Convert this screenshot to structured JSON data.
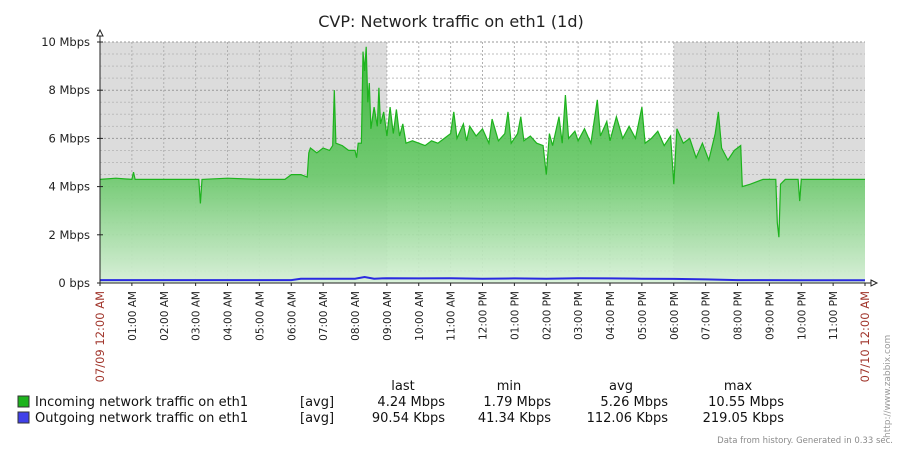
{
  "chart_data": {
    "type": "area",
    "title": "CVP: Network traffic on eth1 (1d)",
    "y_ticks": [
      "0 bps",
      "2 Mbps",
      "4 Mbps",
      "6 Mbps",
      "8 Mbps",
      "10 Mbps"
    ],
    "ylim_mbps": [
      0,
      10
    ],
    "x_start_label": "07/09 12:00 AM",
    "x_end_label": "07/10 12:00 AM",
    "x_ticks": [
      "01:00 AM",
      "02:00 AM",
      "03:00 AM",
      "04:00 AM",
      "05:00 AM",
      "06:00 AM",
      "07:00 AM",
      "08:00 AM",
      "09:00 AM",
      "10:00 AM",
      "11:00 AM",
      "12:00 PM",
      "01:00 PM",
      "02:00 PM",
      "03:00 PM",
      "04:00 PM",
      "05:00 PM",
      "06:00 PM",
      "07:00 PM",
      "08:00 PM",
      "09:00 PM",
      "10:00 PM",
      "11:00 PM"
    ],
    "xlim_hours": [
      0,
      24
    ],
    "work_hours": [
      9,
      18
    ],
    "grid": true,
    "series": [
      {
        "name": "Incoming network traffic on eth1",
        "color": "#1db31d",
        "points_hours_mbps": [
          [
            0,
            4.3
          ],
          [
            0.5,
            4.35
          ],
          [
            1.0,
            4.3
          ],
          [
            1.05,
            4.6
          ],
          [
            1.1,
            4.3
          ],
          [
            2.0,
            4.3
          ],
          [
            3.1,
            4.3
          ],
          [
            3.15,
            3.3
          ],
          [
            3.2,
            4.3
          ],
          [
            4.0,
            4.35
          ],
          [
            5.0,
            4.3
          ],
          [
            5.8,
            4.3
          ],
          [
            6.0,
            4.5
          ],
          [
            6.3,
            4.5
          ],
          [
            6.5,
            4.4
          ],
          [
            6.55,
            5.4
          ],
          [
            6.6,
            5.6
          ],
          [
            6.8,
            5.4
          ],
          [
            7.0,
            5.6
          ],
          [
            7.2,
            5.5
          ],
          [
            7.3,
            5.7
          ],
          [
            7.35,
            8.0
          ],
          [
            7.4,
            5.8
          ],
          [
            7.6,
            5.7
          ],
          [
            7.8,
            5.5
          ],
          [
            8.0,
            5.5
          ],
          [
            8.05,
            5.2
          ],
          [
            8.1,
            5.8
          ],
          [
            8.2,
            5.8
          ],
          [
            8.25,
            9.6
          ],
          [
            8.3,
            8.8
          ],
          [
            8.35,
            9.8
          ],
          [
            8.4,
            7.5
          ],
          [
            8.45,
            8.3
          ],
          [
            8.5,
            6.4
          ],
          [
            8.6,
            7.3
          ],
          [
            8.7,
            6.5
          ],
          [
            8.75,
            8.1
          ],
          [
            8.8,
            6.6
          ],
          [
            8.9,
            7.1
          ],
          [
            9.0,
            6.1
          ],
          [
            9.1,
            7.3
          ],
          [
            9.2,
            6.2
          ],
          [
            9.3,
            7.2
          ],
          [
            9.4,
            6.1
          ],
          [
            9.5,
            6.6
          ],
          [
            9.6,
            5.8
          ],
          [
            9.8,
            5.9
          ],
          [
            10.0,
            5.8
          ],
          [
            10.2,
            5.7
          ],
          [
            10.4,
            5.9
          ],
          [
            10.6,
            5.8
          ],
          [
            10.8,
            6.0
          ],
          [
            11.0,
            6.2
          ],
          [
            11.1,
            7.1
          ],
          [
            11.2,
            6.0
          ],
          [
            11.4,
            6.6
          ],
          [
            11.5,
            5.9
          ],
          [
            11.6,
            6.5
          ],
          [
            11.8,
            6.1
          ],
          [
            12.0,
            6.4
          ],
          [
            12.2,
            5.8
          ],
          [
            12.3,
            6.8
          ],
          [
            12.5,
            5.9
          ],
          [
            12.7,
            6.2
          ],
          [
            12.8,
            7.1
          ],
          [
            12.9,
            5.8
          ],
          [
            13.1,
            6.2
          ],
          [
            13.2,
            6.9
          ],
          [
            13.3,
            5.9
          ],
          [
            13.5,
            6.1
          ],
          [
            13.7,
            5.8
          ],
          [
            13.9,
            5.7
          ],
          [
            14.0,
            4.5
          ],
          [
            14.1,
            6.2
          ],
          [
            14.2,
            5.7
          ],
          [
            14.4,
            6.9
          ],
          [
            14.5,
            5.8
          ],
          [
            14.6,
            7.8
          ],
          [
            14.7,
            6.0
          ],
          [
            14.9,
            6.3
          ],
          [
            15.0,
            5.9
          ],
          [
            15.2,
            6.4
          ],
          [
            15.4,
            5.8
          ],
          [
            15.6,
            7.6
          ],
          [
            15.7,
            6.1
          ],
          [
            15.9,
            6.7
          ],
          [
            16.0,
            5.9
          ],
          [
            16.2,
            6.9
          ],
          [
            16.4,
            6.0
          ],
          [
            16.6,
            6.5
          ],
          [
            16.8,
            6.0
          ],
          [
            17.0,
            7.3
          ],
          [
            17.1,
            5.8
          ],
          [
            17.3,
            6.0
          ],
          [
            17.5,
            6.3
          ],
          [
            17.7,
            5.7
          ],
          [
            17.9,
            6.1
          ],
          [
            18.0,
            4.1
          ],
          [
            18.1,
            6.4
          ],
          [
            18.3,
            5.8
          ],
          [
            18.5,
            6.0
          ],
          [
            18.7,
            5.2
          ],
          [
            18.9,
            5.8
          ],
          [
            19.1,
            5.1
          ],
          [
            19.3,
            6.2
          ],
          [
            19.4,
            7.1
          ],
          [
            19.5,
            5.6
          ],
          [
            19.7,
            5.1
          ],
          [
            19.9,
            5.5
          ],
          [
            20.0,
            5.6
          ],
          [
            20.1,
            5.7
          ],
          [
            20.15,
            4.0
          ],
          [
            20.4,
            4.1
          ],
          [
            20.8,
            4.3
          ],
          [
            21.1,
            4.3
          ],
          [
            21.2,
            4.3
          ],
          [
            21.25,
            2.5
          ],
          [
            21.3,
            1.9
          ],
          [
            21.35,
            4.1
          ],
          [
            21.5,
            4.3
          ],
          [
            21.9,
            4.3
          ],
          [
            21.95,
            3.4
          ],
          [
            22.0,
            4.3
          ],
          [
            23.0,
            4.3
          ],
          [
            24.0,
            4.3
          ]
        ]
      },
      {
        "name": "Outgoing network traffic on eth1",
        "color": "#2a2ae0",
        "points_hours_mbps": [
          [
            0,
            0.12
          ],
          [
            6.0,
            0.12
          ],
          [
            6.3,
            0.18
          ],
          [
            8.0,
            0.18
          ],
          [
            8.3,
            0.25
          ],
          [
            8.6,
            0.18
          ],
          [
            9.0,
            0.2
          ],
          [
            10.0,
            0.19
          ],
          [
            11.0,
            0.2
          ],
          [
            12.0,
            0.18
          ],
          [
            13.0,
            0.19
          ],
          [
            14.0,
            0.18
          ],
          [
            15.0,
            0.2
          ],
          [
            16.0,
            0.19
          ],
          [
            17.0,
            0.18
          ],
          [
            18.0,
            0.17
          ],
          [
            19.0,
            0.15
          ],
          [
            20.0,
            0.12
          ],
          [
            22.0,
            0.11
          ],
          [
            24.0,
            0.11
          ]
        ]
      }
    ]
  },
  "legend": {
    "headers": {
      "last": "last",
      "min": "min",
      "avg": "avg",
      "max": "max"
    },
    "rows": [
      {
        "name": "Incoming network traffic on eth1",
        "func": "[avg]",
        "last": "4.24 Mbps",
        "min": "1.79 Mbps",
        "avg": "5.26 Mbps",
        "max": "10.55 Mbps",
        "color": "#1db31d"
      },
      {
        "name": "Outgoing network traffic on eth1",
        "func": "[avg]",
        "last": "90.54 Kbps",
        "min": "41.34 Kbps",
        "avg": "112.06 Kbps",
        "max": "219.05 Kbps",
        "color": "#4040e8"
      }
    ]
  },
  "footer_text": "Data from history. Generated in 0.33 sec.",
  "brand_text": "http://www.zabbix.com"
}
